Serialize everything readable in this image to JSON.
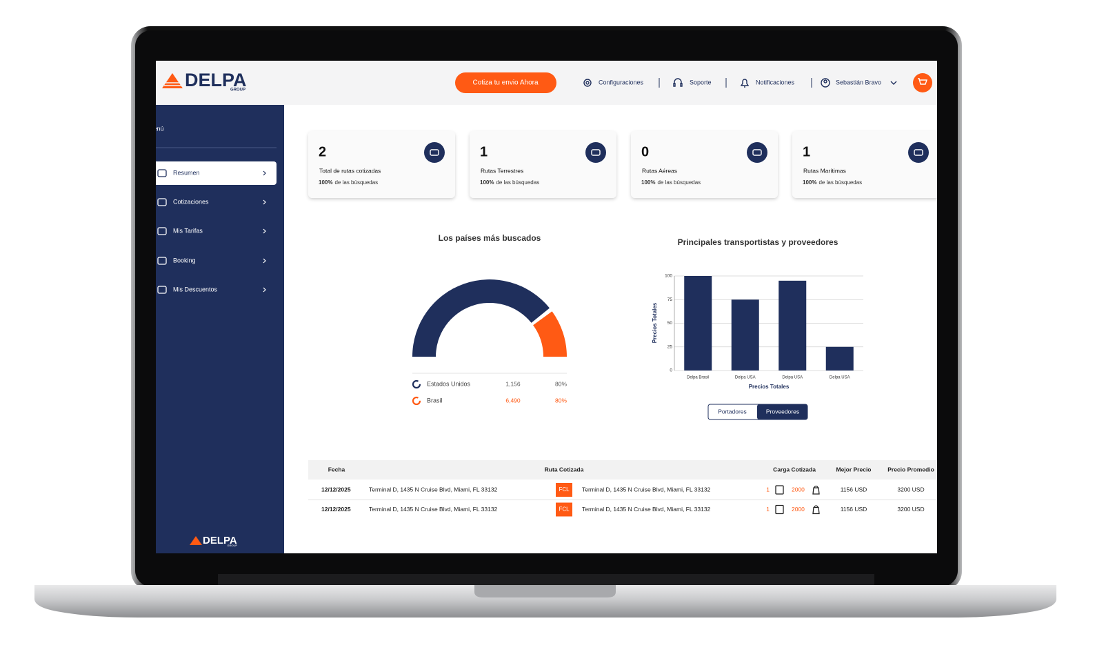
{
  "header": {
    "logo": "DELPA",
    "logo_sub": "GROUP",
    "cta": "Cotiza tu envio Ahora",
    "nav": [
      "Configuraciones",
      "Soporte",
      "Notificaciones",
      "Sebastián Bravo"
    ]
  },
  "sidebar": {
    "title": "Menú",
    "items": [
      "Resumen",
      "Cotizaciones",
      "Mis Tarifas",
      "Booking",
      "Mis Descuentos"
    ],
    "footer_logo": "DELPA",
    "footer_logo_sub": "GROUP"
  },
  "cards": [
    {
      "value": 2,
      "label": "Total de rutas cotizadas",
      "percent": "100%",
      "note": "de las búsquedas"
    },
    {
      "value": 1,
      "label": "Rutas Terrestres",
      "percent": "100%",
      "note": "de las búsquedas"
    },
    {
      "value": 0,
      "label": "Rutas Aéreas",
      "percent": "100%",
      "note": "de las búsquedas"
    },
    {
      "value": 1,
      "label": "Rutas Marítimas",
      "percent": "100%",
      "note": "de las búsquedas"
    }
  ],
  "countries": {
    "title": "Los países más buscados",
    "rows": [
      {
        "name": "Estados Unidos",
        "count": "1,156",
        "share": "80%"
      },
      {
        "name": "Brasil",
        "count": "6,490",
        "share": "80%"
      }
    ]
  },
  "carriers_chart": {
    "type": "bar",
    "title": "Principales transportistas y proveedores",
    "categories": [
      "Delpa Brasil",
      "Delpa USA",
      "Delpa USA",
      "Delpa USA"
    ],
    "values": [
      100,
      75,
      95,
      25
    ],
    "color": "#1f2f5c",
    "ylim": [
      0,
      100
    ],
    "yticks": [
      0,
      25,
      50,
      75,
      100
    ],
    "grid": true,
    "y_label": "Precios Totales",
    "x_label": "Precios Totales",
    "toggle": [
      "Portadores",
      "Proveedores"
    ]
  },
  "table": {
    "columns": [
      "Fecha",
      "Ruta Cotizada",
      "Carga Cotizada",
      "Mejor Precio",
      "Precio Promedio"
    ],
    "rows": [
      {
        "date": "12/12/2025",
        "origin": "Terminal D, 1435 N Cruise Blvd, Miami, FL 33132",
        "mode": "FCL",
        "destination": "Terminal D, 1435 N Cruise Blvd, Miami, FL 33132",
        "units": "1",
        "weight": "2000",
        "best": "1156 USD",
        "avg": "3200 USD"
      },
      {
        "date": "12/12/2025",
        "origin": "Terminal D, 1435 N Cruise Blvd, Miami, FL 33132",
        "mode": "FCL",
        "destination": "Terminal D, 1435 N Cruise Blvd, Miami, FL 33132",
        "units": "1",
        "weight": "2000",
        "best": "1156 USD",
        "avg": "3200 USD"
      }
    ]
  }
}
